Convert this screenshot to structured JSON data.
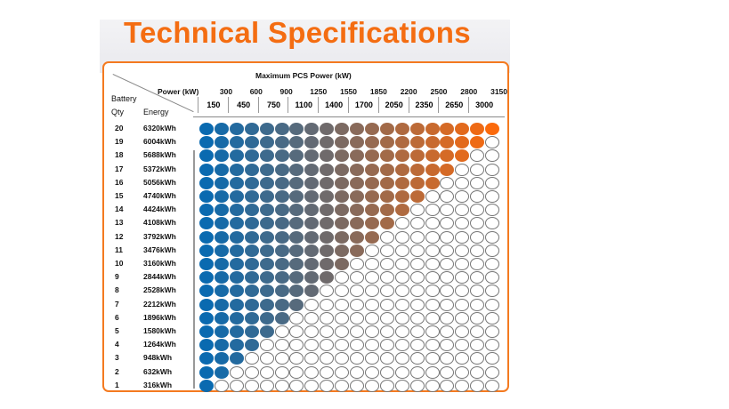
{
  "title": "Technical Specifications",
  "table": {
    "heading": "Maximum PCS Power (kW)",
    "power_label": "Power (kW)",
    "battery_label": "Battery",
    "qty_label": "Qty",
    "energy_label": "Energy",
    "power_top": [
      "300",
      "600",
      "900",
      "1250",
      "1550",
      "1850",
      "2200",
      "2500",
      "2800",
      "3150"
    ],
    "power_bottom": [
      "150",
      "450",
      "750",
      "1100",
      "1400",
      "1700",
      "2050",
      "2350",
      "2650",
      "3000"
    ],
    "rows": [
      {
        "qty": "20",
        "energy": "6320kWh",
        "filled": 20
      },
      {
        "qty": "19",
        "energy": "6004kWh",
        "filled": 19
      },
      {
        "qty": "18",
        "energy": "5688kWh",
        "filled": 18
      },
      {
        "qty": "17",
        "energy": "5372kWh",
        "filled": 17
      },
      {
        "qty": "16",
        "energy": "5056kWh",
        "filled": 16
      },
      {
        "qty": "15",
        "energy": "4740kWh",
        "filled": 15
      },
      {
        "qty": "14",
        "energy": "4424kWh",
        "filled": 14
      },
      {
        "qty": "13",
        "energy": "4108kWh",
        "filled": 13
      },
      {
        "qty": "12",
        "energy": "3792kWh",
        "filled": 12
      },
      {
        "qty": "11",
        "energy": "3476kWh",
        "filled": 11
      },
      {
        "qty": "10",
        "energy": "3160kWh",
        "filled": 10
      },
      {
        "qty": "9",
        "energy": "2844kWh",
        "filled": 9
      },
      {
        "qty": "8",
        "energy": "2528kWh",
        "filled": 8
      },
      {
        "qty": "7",
        "energy": "2212kWh",
        "filled": 7
      },
      {
        "qty": "6",
        "energy": "1896kWh",
        "filled": 6
      },
      {
        "qty": "5",
        "energy": "1580kWh",
        "filled": 5
      },
      {
        "qty": "4",
        "energy": "1264kWh",
        "filled": 4
      },
      {
        "qty": "3",
        "energy": "948kWh",
        "filled": 3
      },
      {
        "qty": "2",
        "energy": "632kWh",
        "filled": 2
      },
      {
        "qty": "1",
        "energy": "316kWh",
        "filled": 1
      }
    ],
    "columns": 20,
    "color_start": "#0a6ab0",
    "color_end": "#fb6a0c",
    "accent": "#f47a20"
  }
}
